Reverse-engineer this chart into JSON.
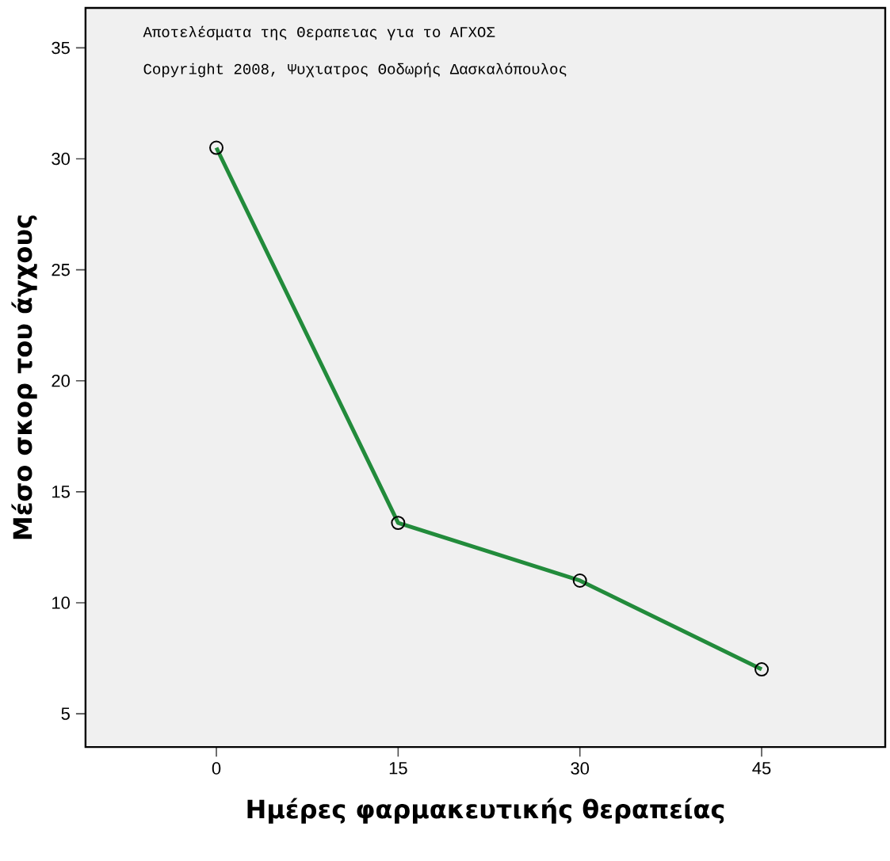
{
  "chart_data": {
    "type": "line",
    "xlabel": "Ημέρες φαρμακευτικής θεραπείας",
    "ylabel": "Μέσο σκορ του άγχους",
    "annotations": [
      "Αποτελέσματα της Θεραπειας για το ΑΓΧΟΣ",
      "Copyright 2008, Ψυχιατρος Θοδωρής Δασκαλόπουλος"
    ],
    "x": [
      0,
      15,
      30,
      45
    ],
    "series": [
      {
        "color": "#228b3b",
        "values": [
          30.5,
          13.6,
          11.0,
          7.0
        ]
      }
    ],
    "marker": "circle",
    "xlim": [
      -10.8,
      55.2
    ],
    "ylim": [
      3.5,
      36.8
    ],
    "xticks": [
      0,
      15,
      30,
      45
    ],
    "yticks": [
      5,
      10,
      15,
      20,
      25,
      30,
      35
    ]
  }
}
